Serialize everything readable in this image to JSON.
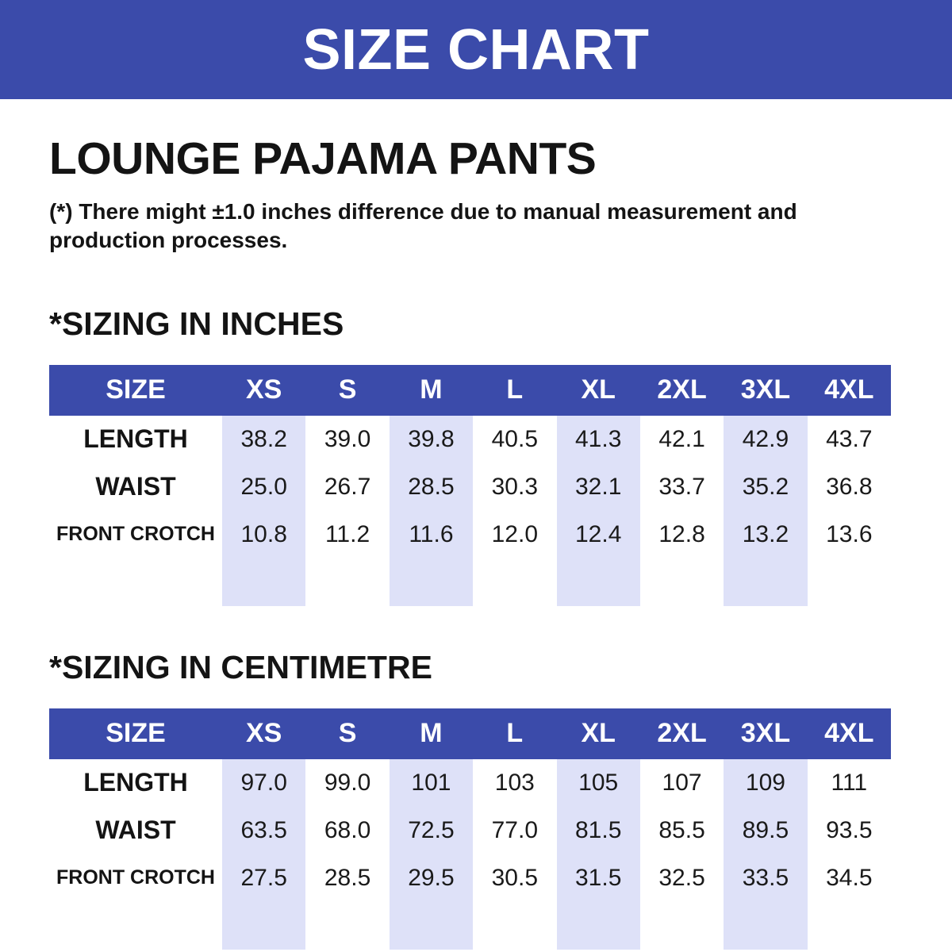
{
  "banner": {
    "title": "SIZE CHART"
  },
  "product": {
    "title": "LOUNGE PAJAMA PANTS",
    "note": "(*) There might ±1.0 inches difference due to manual measurement and production processes."
  },
  "colors": {
    "banner_blue": "#3B4BAA",
    "stripe_lavender": "#DEE1F8",
    "text_black": "#141414",
    "white": "#FFFFFF"
  },
  "chart_data": [
    {
      "type": "table",
      "title": "*SIZING IN INCHES",
      "columns": [
        "SIZE",
        "XS",
        "S",
        "M",
        "L",
        "XL",
        "2XL",
        "3XL",
        "4XL"
      ],
      "rows": [
        {
          "label": "LENGTH",
          "values": [
            "38.2",
            "39.0",
            "39.8",
            "40.5",
            "41.3",
            "42.1",
            "42.9",
            "43.7"
          ]
        },
        {
          "label": "WAIST",
          "values": [
            "25.0",
            "26.7",
            "28.5",
            "30.3",
            "32.1",
            "33.7",
            "35.2",
            "36.8"
          ]
        },
        {
          "label": "FRONT CROTCH",
          "values": [
            "10.8",
            "11.2",
            "11.6",
            "12.0",
            "12.4",
            "12.8",
            "13.2",
            "13.6"
          ]
        }
      ]
    },
    {
      "type": "table",
      "title": "*SIZING IN CENTIMETRE",
      "columns": [
        "SIZE",
        "XS",
        "S",
        "M",
        "L",
        "XL",
        "2XL",
        "3XL",
        "4XL"
      ],
      "rows": [
        {
          "label": "LENGTH",
          "values": [
            "97.0",
            "99.0",
            "101",
            "103",
            "105",
            "107",
            "109",
            "111"
          ]
        },
        {
          "label": "WAIST",
          "values": [
            "63.5",
            "68.0",
            "72.5",
            "77.0",
            "81.5",
            "85.5",
            "89.5",
            "93.5"
          ]
        },
        {
          "label": "FRONT CROTCH",
          "values": [
            "27.5",
            "28.5",
            "29.5",
            "30.5",
            "31.5",
            "32.5",
            "33.5",
            "34.5"
          ]
        }
      ]
    }
  ]
}
